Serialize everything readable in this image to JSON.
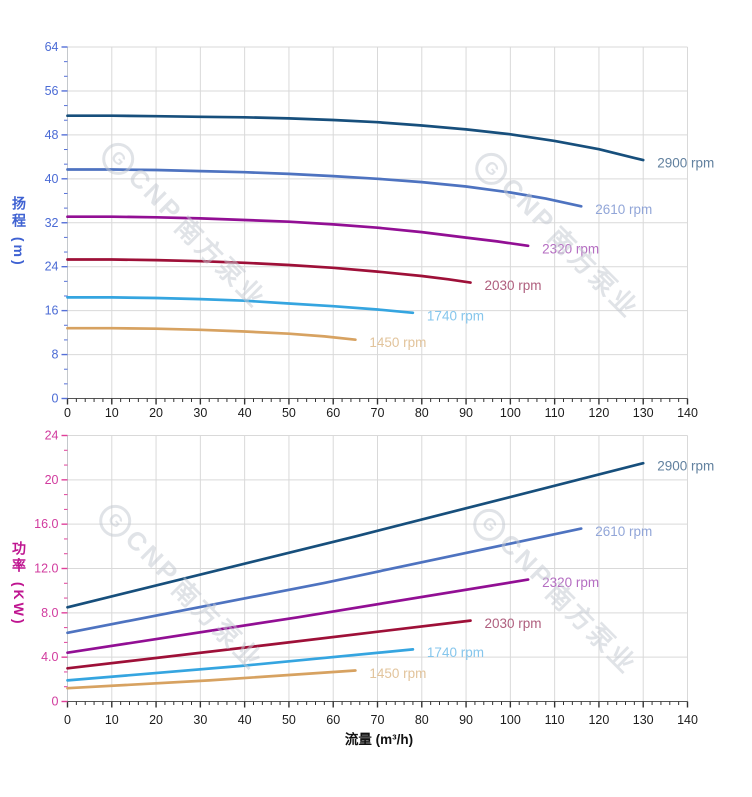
{
  "watermark": {
    "logo_letter": "G",
    "brand": "CNP",
    "cn": "南方泵业"
  },
  "colors": {
    "head_axis": "#3f62d2",
    "power_axis": "#bf1590",
    "flow_axis": "#111111",
    "x_tick": "#333333",
    "x_label": "#1c1c1c",
    "grid": "#d9d9d9",
    "y_axis_line": "#c4c8cc",
    "x_axis_line": "#555555",
    "watermark": "#c3c8d1"
  },
  "chart_data": [
    {
      "type": "line",
      "title": "",
      "xlabel": "",
      "ylabel": "扬程 (m)",
      "xlim": [
        0,
        140
      ],
      "ylim": [
        0,
        64
      ],
      "grid": true,
      "legend_position": "end-of-line",
      "axis": {
        "tick_color": "#5570d8",
        "label_color": "#4b6bd5"
      },
      "x_minor_step": 2,
      "y_minor_divisions": 3,
      "xticks": [
        {
          "v": 0,
          "label": "0"
        },
        {
          "v": 10,
          "label": "10"
        },
        {
          "v": 20,
          "label": "20"
        },
        {
          "v": 30,
          "label": "30"
        },
        {
          "v": 40,
          "label": "40"
        },
        {
          "v": 50,
          "label": "50"
        },
        {
          "v": 60,
          "label": "60"
        },
        {
          "v": 70,
          "label": "70"
        },
        {
          "v": 80,
          "label": "80"
        },
        {
          "v": 90,
          "label": "90"
        },
        {
          "v": 100,
          "label": "100"
        },
        {
          "v": 110,
          "label": "110"
        },
        {
          "v": 120,
          "label": "120"
        },
        {
          "v": 130,
          "label": "130"
        },
        {
          "v": 140,
          "label": "140"
        }
      ],
      "yticks": [
        {
          "v": 0,
          "label": "0"
        },
        {
          "v": 8,
          "label": "8"
        },
        {
          "v": 16,
          "label": "16"
        },
        {
          "v": 24,
          "label": "24"
        },
        {
          "v": 32,
          "label": "32"
        },
        {
          "v": 40,
          "label": "40"
        },
        {
          "v": 48,
          "label": "48"
        },
        {
          "v": 56,
          "label": "56"
        },
        {
          "v": 64,
          "label": "64"
        }
      ],
      "series": [
        {
          "name": "2900 rpm",
          "color": "#174f7c",
          "label_color": "#62819f",
          "points": [
            [
              0,
              51.5
            ],
            [
              10,
              51.5
            ],
            [
              20,
              51.4
            ],
            [
              30,
              51.3
            ],
            [
              40,
              51.2
            ],
            [
              50,
              51.0
            ],
            [
              60,
              50.7
            ],
            [
              70,
              50.3
            ],
            [
              80,
              49.7
            ],
            [
              90,
              49.0
            ],
            [
              100,
              48.1
            ],
            [
              110,
              46.9
            ],
            [
              120,
              45.4
            ],
            [
              130,
              43.4
            ]
          ]
        },
        {
          "name": "2610 rpm",
          "color": "#4e73c0",
          "label_color": "#92a6d8",
          "points": [
            [
              0,
              41.7
            ],
            [
              10,
              41.7
            ],
            [
              20,
              41.6
            ],
            [
              30,
              41.4
            ],
            [
              40,
              41.2
            ],
            [
              50,
              40.9
            ],
            [
              60,
              40.5
            ],
            [
              70,
              40.0
            ],
            [
              80,
              39.4
            ],
            [
              90,
              38.6
            ],
            [
              100,
              37.5
            ],
            [
              108,
              36.4
            ],
            [
              116,
              35.0
            ]
          ]
        },
        {
          "name": "2320 rpm",
          "color": "#920f94",
          "label_color": "#b56ec2",
          "points": [
            [
              0,
              33.1
            ],
            [
              10,
              33.1
            ],
            [
              20,
              33.0
            ],
            [
              30,
              32.8
            ],
            [
              40,
              32.5
            ],
            [
              50,
              32.2
            ],
            [
              60,
              31.7
            ],
            [
              70,
              31.1
            ],
            [
              80,
              30.3
            ],
            [
              90,
              29.3
            ],
            [
              97,
              28.6
            ],
            [
              104,
              27.8
            ]
          ]
        },
        {
          "name": "2030 rpm",
          "color": "#9e1038",
          "label_color": "#af5f7e",
          "points": [
            [
              0,
              25.3
            ],
            [
              10,
              25.3
            ],
            [
              20,
              25.2
            ],
            [
              30,
              25.0
            ],
            [
              40,
              24.7
            ],
            [
              50,
              24.3
            ],
            [
              60,
              23.8
            ],
            [
              70,
              23.1
            ],
            [
              80,
              22.3
            ],
            [
              86,
              21.7
            ],
            [
              91,
              21.1
            ]
          ]
        },
        {
          "name": "1740 rpm",
          "color": "#35a5e0",
          "label_color": "#86c6ec",
          "points": [
            [
              0,
              18.4
            ],
            [
              10,
              18.4
            ],
            [
              20,
              18.3
            ],
            [
              30,
              18.1
            ],
            [
              40,
              17.8
            ],
            [
              50,
              17.3
            ],
            [
              60,
              16.8
            ],
            [
              70,
              16.2
            ],
            [
              78,
              15.6
            ]
          ]
        },
        {
          "name": "1450 rpm",
          "color": "#d7a261",
          "label_color": "#e2c49c",
          "points": [
            [
              0,
              12.8
            ],
            [
              10,
              12.8
            ],
            [
              20,
              12.7
            ],
            [
              30,
              12.5
            ],
            [
              40,
              12.2
            ],
            [
              50,
              11.8
            ],
            [
              58,
              11.3
            ],
            [
              65,
              10.7
            ]
          ]
        }
      ]
    },
    {
      "type": "line",
      "title": "",
      "xlabel": "流量 (m³/h)",
      "ylabel": "功率 (KW)",
      "xlim": [
        0,
        140
      ],
      "ylim": [
        0,
        24
      ],
      "grid": true,
      "legend_position": "end-of-line",
      "axis": {
        "tick_color": "#e0409a",
        "label_color": "#d13b9e"
      },
      "x_minor_step": 2,
      "y_minor_divisions": 3,
      "xticks": [
        {
          "v": 0,
          "label": "0"
        },
        {
          "v": 10,
          "label": "10"
        },
        {
          "v": 20,
          "label": "20"
        },
        {
          "v": 30,
          "label": "30"
        },
        {
          "v": 40,
          "label": "40"
        },
        {
          "v": 50,
          "label": "50"
        },
        {
          "v": 60,
          "label": "60"
        },
        {
          "v": 70,
          "label": "70"
        },
        {
          "v": 80,
          "label": "80"
        },
        {
          "v": 90,
          "label": "90"
        },
        {
          "v": 100,
          "label": "100"
        },
        {
          "v": 110,
          "label": "110"
        },
        {
          "v": 120,
          "label": "120"
        },
        {
          "v": 130,
          "label": "130"
        },
        {
          "v": 140,
          "label": "140"
        }
      ],
      "yticks": [
        {
          "v": 0,
          "label": "0"
        },
        {
          "v": 4,
          "label": "4.0"
        },
        {
          "v": 8,
          "label": "8.0"
        },
        {
          "v": 12,
          "label": "12.0"
        },
        {
          "v": 16,
          "label": "16.0"
        },
        {
          "v": 20,
          "label": "20"
        },
        {
          "v": 24,
          "label": "24"
        }
      ],
      "series": [
        {
          "name": "2900 rpm",
          "color": "#174f7c",
          "label_color": "#62819f",
          "points": [
            [
              0,
              8.5
            ],
            [
              65,
              14.9
            ],
            [
              130,
              21.5
            ]
          ]
        },
        {
          "name": "2610 rpm",
          "color": "#4e73c0",
          "label_color": "#92a6d8",
          "points": [
            [
              0,
              6.2
            ],
            [
              58,
              10.7
            ],
            [
              116,
              15.6
            ]
          ]
        },
        {
          "name": "2320 rpm",
          "color": "#920f94",
          "label_color": "#b56ec2",
          "points": [
            [
              0,
              4.4
            ],
            [
              52,
              7.6
            ],
            [
              104,
              11.0
            ]
          ]
        },
        {
          "name": "2030 rpm",
          "color": "#9e1038",
          "label_color": "#af5f7e",
          "points": [
            [
              0,
              3.0
            ],
            [
              45,
              5.1
            ],
            [
              91,
              7.3
            ]
          ]
        },
        {
          "name": "1740 rpm",
          "color": "#35a5e0",
          "label_color": "#86c6ec",
          "points": [
            [
              0,
              1.9
            ],
            [
              39,
              3.2
            ],
            [
              78,
              4.7
            ]
          ]
        },
        {
          "name": "1450 rpm",
          "color": "#d7a261",
          "label_color": "#e2c49c",
          "points": [
            [
              0,
              1.2
            ],
            [
              32,
              1.9
            ],
            [
              65,
              2.8
            ]
          ]
        }
      ]
    }
  ]
}
